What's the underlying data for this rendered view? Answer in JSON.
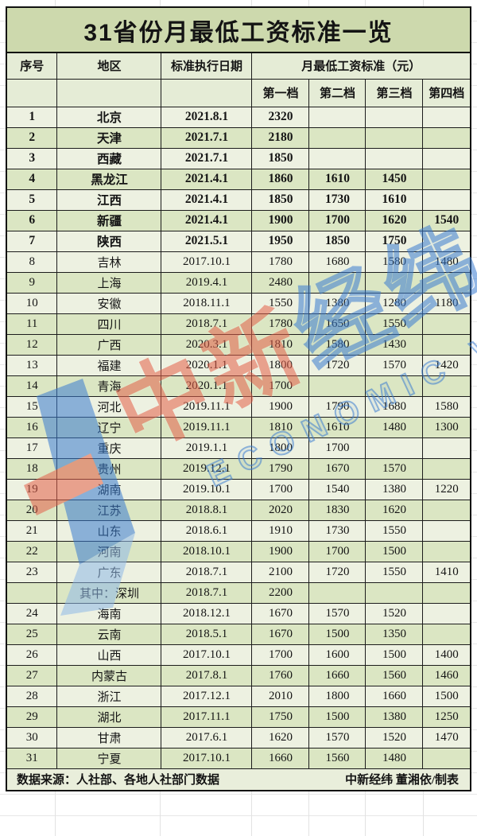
{
  "title": "31省份月最低工资标准一览",
  "header": {
    "col_no": "序号",
    "col_region": "地区",
    "col_date": "标准执行日期",
    "col_wage_group": "月最低工资标准（元）",
    "tiers": [
      "第一档",
      "第二档",
      "第三档",
      "第四档"
    ]
  },
  "rows": [
    {
      "no": "1",
      "region": "北京",
      "date": "2021.8.1",
      "t1": "2320",
      "t2": "",
      "t3": "",
      "t4": "",
      "bold": true,
      "shade": "light"
    },
    {
      "no": "2",
      "region": "天津",
      "date": "2021.7.1",
      "t1": "2180",
      "t2": "",
      "t3": "",
      "t4": "",
      "bold": true,
      "shade": "dark"
    },
    {
      "no": "3",
      "region": "西藏",
      "date": "2021.7.1",
      "t1": "1850",
      "t2": "",
      "t3": "",
      "t4": "",
      "bold": true,
      "shade": "light"
    },
    {
      "no": "4",
      "region": "黑龙江",
      "date": "2021.4.1",
      "t1": "1860",
      "t2": "1610",
      "t3": "1450",
      "t4": "",
      "bold": true,
      "shade": "dark"
    },
    {
      "no": "5",
      "region": "江西",
      "date": "2021.4.1",
      "t1": "1850",
      "t2": "1730",
      "t3": "1610",
      "t4": "",
      "bold": true,
      "shade": "light"
    },
    {
      "no": "6",
      "region": "新疆",
      "date": "2021.4.1",
      "t1": "1900",
      "t2": "1700",
      "t3": "1620",
      "t4": "1540",
      "bold": true,
      "shade": "dark"
    },
    {
      "no": "7",
      "region": "陕西",
      "date": "2021.5.1",
      "t1": "1950",
      "t2": "1850",
      "t3": "1750",
      "t4": "",
      "bold": true,
      "shade": "light"
    },
    {
      "no": "8",
      "region": "吉林",
      "date": "2017.10.1",
      "t1": "1780",
      "t2": "1680",
      "t3": "1580",
      "t4": "1480",
      "bold": false,
      "shade": "light"
    },
    {
      "no": "9",
      "region": "上海",
      "date": "2019.4.1",
      "t1": "2480",
      "t2": "",
      "t3": "",
      "t4": "",
      "bold": false,
      "shade": "dark"
    },
    {
      "no": "10",
      "region": "安徽",
      "date": "2018.11.1",
      "t1": "1550",
      "t2": "1380",
      "t3": "1280",
      "t4": "1180",
      "bold": false,
      "shade": "light"
    },
    {
      "no": "11",
      "region": "四川",
      "date": "2018.7.1",
      "t1": "1780",
      "t2": "1650",
      "t3": "1550",
      "t4": "",
      "bold": false,
      "shade": "dark"
    },
    {
      "no": "12",
      "region": "广西",
      "date": "2020.3.1",
      "t1": "1810",
      "t2": "1580",
      "t3": "1430",
      "t4": "",
      "bold": false,
      "shade": "dark"
    },
    {
      "no": "13",
      "region": "福建",
      "date": "2020.1.1",
      "t1": "1800",
      "t2": "1720",
      "t3": "1570",
      "t4": "1420",
      "bold": false,
      "shade": "light"
    },
    {
      "no": "14",
      "region": "青海",
      "date": "2020.1.1",
      "t1": "1700",
      "t2": "",
      "t3": "",
      "t4": "",
      "bold": false,
      "shade": "dark"
    },
    {
      "no": "15",
      "region": "河北",
      "date": "2019.11.1",
      "t1": "1900",
      "t2": "1790",
      "t3": "1680",
      "t4": "1580",
      "bold": false,
      "shade": "light"
    },
    {
      "no": "16",
      "region": "辽宁",
      "date": "2019.11.1",
      "t1": "1810",
      "t2": "1610",
      "t3": "1480",
      "t4": "1300",
      "bold": false,
      "shade": "dark"
    },
    {
      "no": "17",
      "region": "重庆",
      "date": "2019.1.1",
      "t1": "1800",
      "t2": "1700",
      "t3": "",
      "t4": "",
      "bold": false,
      "shade": "light"
    },
    {
      "no": "18",
      "region": "贵州",
      "date": "2019.12.1",
      "t1": "1790",
      "t2": "1670",
      "t3": "1570",
      "t4": "",
      "bold": false,
      "shade": "dark"
    },
    {
      "no": "19",
      "region": "湖南",
      "date": "2019.10.1",
      "t1": "1700",
      "t2": "1540",
      "t3": "1380",
      "t4": "1220",
      "bold": false,
      "shade": "light"
    },
    {
      "no": "20",
      "region": "江苏",
      "date": "2018.8.1",
      "t1": "2020",
      "t2": "1830",
      "t3": "1620",
      "t4": "",
      "bold": false,
      "shade": "dark"
    },
    {
      "no": "21",
      "region": "山东",
      "date": "2018.6.1",
      "t1": "1910",
      "t2": "1730",
      "t3": "1550",
      "t4": "",
      "bold": false,
      "shade": "light"
    },
    {
      "no": "22",
      "region": "河南",
      "date": "2018.10.1",
      "t1": "1900",
      "t2": "1700",
      "t3": "1500",
      "t4": "",
      "bold": false,
      "shade": "dark"
    },
    {
      "no": "23",
      "region": "广东",
      "date": "2018.7.1",
      "t1": "2100",
      "t2": "1720",
      "t3": "1550",
      "t4": "1410",
      "bold": false,
      "shade": "light"
    },
    {
      "no": "",
      "region": "其中：深圳",
      "date": "2018.7.1",
      "t1": "2200",
      "t2": "",
      "t3": "",
      "t4": "",
      "bold": false,
      "shade": "dark"
    },
    {
      "no": "24",
      "region": "海南",
      "date": "2018.12.1",
      "t1": "1670",
      "t2": "1570",
      "t3": "1520",
      "t4": "",
      "bold": false,
      "shade": "light"
    },
    {
      "no": "25",
      "region": "云南",
      "date": "2018.5.1",
      "t1": "1670",
      "t2": "1500",
      "t3": "1350",
      "t4": "",
      "bold": false,
      "shade": "dark"
    },
    {
      "no": "26",
      "region": "山西",
      "date": "2017.10.1",
      "t1": "1700",
      "t2": "1600",
      "t3": "1500",
      "t4": "1400",
      "bold": false,
      "shade": "light"
    },
    {
      "no": "27",
      "region": "内蒙古",
      "date": "2017.8.1",
      "t1": "1760",
      "t2": "1660",
      "t3": "1560",
      "t4": "1460",
      "bold": false,
      "shade": "dark"
    },
    {
      "no": "28",
      "region": "浙江",
      "date": "2017.12.1",
      "t1": "2010",
      "t2": "1800",
      "t3": "1660",
      "t4": "1500",
      "bold": false,
      "shade": "light"
    },
    {
      "no": "29",
      "region": "湖北",
      "date": "2017.11.1",
      "t1": "1750",
      "t2": "1500",
      "t3": "1380",
      "t4": "1250",
      "bold": false,
      "shade": "dark"
    },
    {
      "no": "30",
      "region": "甘肃",
      "date": "2017.6.1",
      "t1": "1620",
      "t2": "1570",
      "t3": "1520",
      "t4": "1470",
      "bold": false,
      "shade": "light"
    },
    {
      "no": "31",
      "region": "宁夏",
      "date": "2017.10.1",
      "t1": "1660",
      "t2": "1560",
      "t3": "1480",
      "t4": "",
      "bold": false,
      "shade": "dark"
    }
  ],
  "footer": {
    "source": "数据来源：人社部、各地人社部门数据",
    "credit": "中新经纬 董湘依/制表"
  },
  "watermark": {
    "cn_red": "中新",
    "cn_blue": "经纬",
    "en": "ECONOMIC VIEW",
    "red": "#e4604a",
    "blue": "#3a7cd0"
  },
  "colors": {
    "title_bg": "#cdd9ad",
    "header_bg": "#e5ecd6",
    "row_light": "#edf1e1",
    "row_dark": "#dbe6c3",
    "border": "#1c1c1c"
  }
}
